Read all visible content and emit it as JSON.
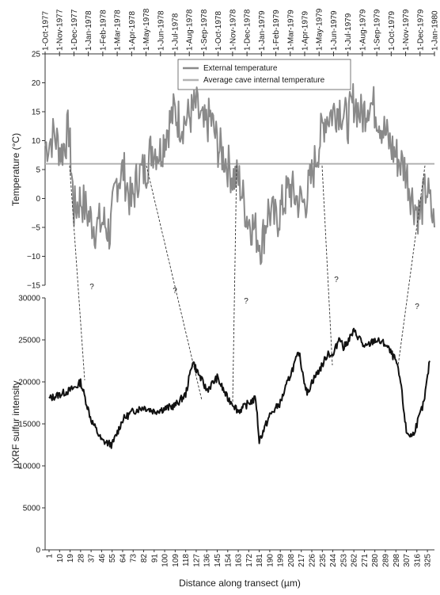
{
  "chart_data": [
    {
      "type": "line",
      "ylabel": "Temperature (°C)",
      "ylim": [
        -15,
        25
      ],
      "yticks": [
        "25",
        "20",
        "15",
        "10",
        "5",
        "0",
        "−5",
        "−10",
        "−15"
      ],
      "xaxis_position": "top",
      "x_tick_labels": [
        "1-Oct-1977",
        "1-Nov-1977",
        "1-Dec-1977",
        "1-Jan-1978",
        "1-Feb-1978",
        "1-Mar-1978",
        "1-Apr-1978",
        "1-May-1978",
        "1-Jun-1978",
        "1-Jul-1978",
        "1-Aug-1978",
        "1-Sep-1978",
        "1-Oct-1978",
        "1-Nov-1978",
        "1-Dec-1978",
        "1-Jan-1979",
        "1-Feb-1979",
        "1-Mar-1979",
        "1-Apr-1979",
        "1-May-1979",
        "1-Jun-1979",
        "1-Jul-1979",
        "1-Aug-1979",
        "1-Sep-1979",
        "1-Oct-1979",
        "1-Nov-1979",
        "1-Dec-1979",
        "1-Jan-1980"
      ],
      "legend_position": "top-center",
      "grid": false,
      "series": [
        {
          "name": "External temperature",
          "color": "#8a8a8a",
          "x": [
            "1977-10-01",
            "1977-10-20",
            "1977-11-05",
            "1977-11-20",
            "1977-12-01",
            "1977-12-15",
            "1978-01-01",
            "1978-01-15",
            "1978-02-01",
            "1978-02-15",
            "1978-03-01",
            "1978-03-15",
            "1978-04-01",
            "1978-04-15",
            "1978-05-01",
            "1978-05-15",
            "1978-06-01",
            "1978-06-15",
            "1978-07-01",
            "1978-07-15",
            "1978-08-01",
            "1978-08-15",
            "1978-09-01",
            "1978-09-15",
            "1978-10-01",
            "1978-10-15",
            "1978-11-01",
            "1978-11-15",
            "1978-12-01",
            "1978-12-15",
            "1979-01-01",
            "1979-01-15",
            "1979-02-01",
            "1979-02-15",
            "1979-03-01",
            "1979-03-15",
            "1979-04-01",
            "1979-04-15",
            "1979-05-01",
            "1979-05-15",
            "1979-06-01",
            "1979-06-15",
            "1979-07-01",
            "1979-07-15",
            "1979-08-01",
            "1979-08-15",
            "1979-09-01",
            "1979-09-15",
            "1979-10-01",
            "1979-10-15",
            "1979-11-01",
            "1979-11-15",
            "1979-12-01",
            "1979-12-15",
            "1980-01-01"
          ],
          "values": [
            9,
            11,
            8,
            12,
            -2,
            0,
            -3,
            -5,
            -4,
            -6,
            3,
            5,
            -1,
            4,
            5,
            9,
            8,
            12,
            15,
            13,
            14,
            16,
            12,
            14,
            9,
            7,
            4,
            3,
            -3,
            -5,
            -8,
            -2,
            -4,
            -1,
            2,
            0,
            -1,
            3,
            9,
            14,
            15,
            16,
            13,
            17,
            14,
            17,
            15,
            12,
            9,
            7,
            5,
            0,
            -3,
            2,
            -5
          ]
        },
        {
          "name": "Average cave internal temperature",
          "color": "#b3b3b3",
          "value": 6
        }
      ]
    },
    {
      "type": "line",
      "xlabel": "Distance along transect (µm)",
      "ylabel": "µXRF sulfur intensity",
      "ylim": [
        0,
        30000
      ],
      "yticks": [
        "0",
        "5000",
        "10000",
        "15000",
        "20000",
        "25000",
        "30000"
      ],
      "x_tick_labels": [
        "1",
        "10",
        "19",
        "28",
        "37",
        "46",
        "55",
        "64",
        "73",
        "82",
        "91",
        "100",
        "109",
        "118",
        "127",
        "136",
        "145",
        "154",
        "163",
        "172",
        "181",
        "190",
        "199",
        "208",
        "217",
        "226",
        "235",
        "244",
        "253",
        "262",
        "271",
        "280",
        "289",
        "298",
        "307",
        "316",
        "325"
      ],
      "xlim": [
        1,
        329
      ],
      "grid": false,
      "series": [
        {
          "name": "",
          "color": "#111111",
          "x": [
            1,
            10,
            19,
            25,
            28,
            37,
            46,
            55,
            64,
            73,
            82,
            91,
            100,
            109,
            118,
            124,
            127,
            136,
            145,
            154,
            158,
            163,
            168,
            172,
            178,
            181,
            190,
            199,
            208,
            215,
            217,
            222,
            226,
            235,
            240,
            244,
            250,
            253,
            262,
            268,
            271,
            280,
            289,
            298,
            302,
            307,
            312,
            316,
            322,
            327
          ],
          "values": [
            18000,
            18500,
            19000,
            19500,
            20000,
            15500,
            13000,
            12500,
            15500,
            16500,
            17000,
            16500,
            16800,
            17200,
            18500,
            22500,
            21500,
            19000,
            20500,
            18000,
            17500,
            16500,
            17000,
            17500,
            18000,
            13000,
            16000,
            17500,
            21000,
            23500,
            22000,
            18500,
            20000,
            22000,
            23500,
            23000,
            25500,
            24000,
            26000,
            25000,
            24000,
            25000,
            24500,
            22500,
            20000,
            14000,
            13500,
            15000,
            17500,
            22500
          ]
        }
      ],
      "annotations": [
        "?",
        "?",
        "?",
        "?",
        "?"
      ]
    }
  ]
}
